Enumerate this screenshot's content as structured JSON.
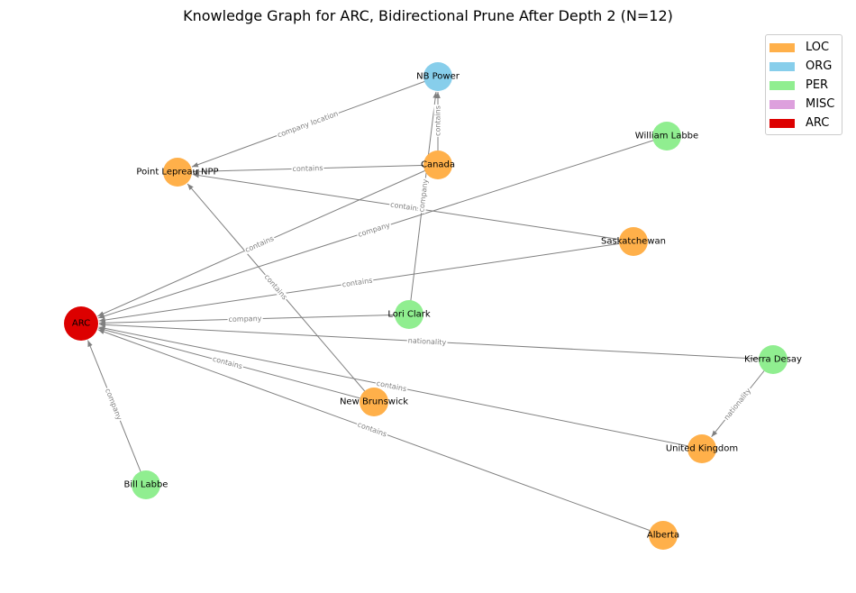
{
  "title": "Knowledge Graph for ARC, Bidirectional Prune After Depth 2 (N=12)",
  "legend": [
    {
      "label": "LOC",
      "color": "#ffb04a"
    },
    {
      "label": "ORG",
      "color": "#87ceeb"
    },
    {
      "label": "PER",
      "color": "#90ee90"
    },
    {
      "label": "MISC",
      "color": "#dda0dd"
    },
    {
      "label": "ARC",
      "color": "#dd0000"
    }
  ],
  "nodes": [
    {
      "id": "ARC",
      "label": "ARC",
      "type": "ARC"
    },
    {
      "id": "NBPower",
      "label": "NB Power",
      "type": "ORG"
    },
    {
      "id": "WilliamLabbe",
      "label": "William Labbe",
      "type": "PER"
    },
    {
      "id": "PointLepreau",
      "label": "Point Lepreau NPP",
      "type": "LOC"
    },
    {
      "id": "Canada",
      "label": "Canada",
      "type": "LOC"
    },
    {
      "id": "Saskatchewan",
      "label": "Saskatchewan",
      "type": "LOC"
    },
    {
      "id": "LoriClark",
      "label": "Lori Clark",
      "type": "PER"
    },
    {
      "id": "KierraDesay",
      "label": "Kierra Desay",
      "type": "PER"
    },
    {
      "id": "NewBrunswick",
      "label": "New Brunswick",
      "type": "LOC"
    },
    {
      "id": "UnitedKingdom",
      "label": "United Kingdom",
      "type": "LOC"
    },
    {
      "id": "BillLabbe",
      "label": "Bill Labbe",
      "type": "PER"
    },
    {
      "id": "Alberta",
      "label": "Alberta",
      "type": "LOC"
    }
  ],
  "edges": [
    {
      "source": "NBPower",
      "target": "PointLepreau",
      "label": "company location"
    },
    {
      "source": "Canada",
      "target": "NBPower",
      "label": "contains"
    },
    {
      "source": "Canada",
      "target": "PointLepreau",
      "label": "contains"
    },
    {
      "source": "Saskatchewan",
      "target": "PointLepreau",
      "label": "contains"
    },
    {
      "source": "LoriClark",
      "target": "NBPower",
      "label": "company"
    },
    {
      "source": "Canada",
      "target": "ARC",
      "label": "contains"
    },
    {
      "source": "WilliamLabbe",
      "target": "ARC",
      "label": "company"
    },
    {
      "source": "Saskatchewan",
      "target": "ARC",
      "label": "contains"
    },
    {
      "source": "LoriClark",
      "target": "ARC",
      "label": "company"
    },
    {
      "source": "KierraDesay",
      "target": "ARC",
      "label": "nationality"
    },
    {
      "source": "NewBrunswick",
      "target": "ARC",
      "label": "contains"
    },
    {
      "source": "NewBrunswick",
      "target": "PointLepreau",
      "label": "contains"
    },
    {
      "source": "UnitedKingdom",
      "target": "ARC",
      "label": "contains"
    },
    {
      "source": "Alberta",
      "target": "ARC",
      "label": "contains"
    },
    {
      "source": "BillLabbe",
      "target": "ARC",
      "label": "company"
    },
    {
      "source": "KierraDesay",
      "target": "UnitedKingdom",
      "label": "nationality"
    }
  ]
}
